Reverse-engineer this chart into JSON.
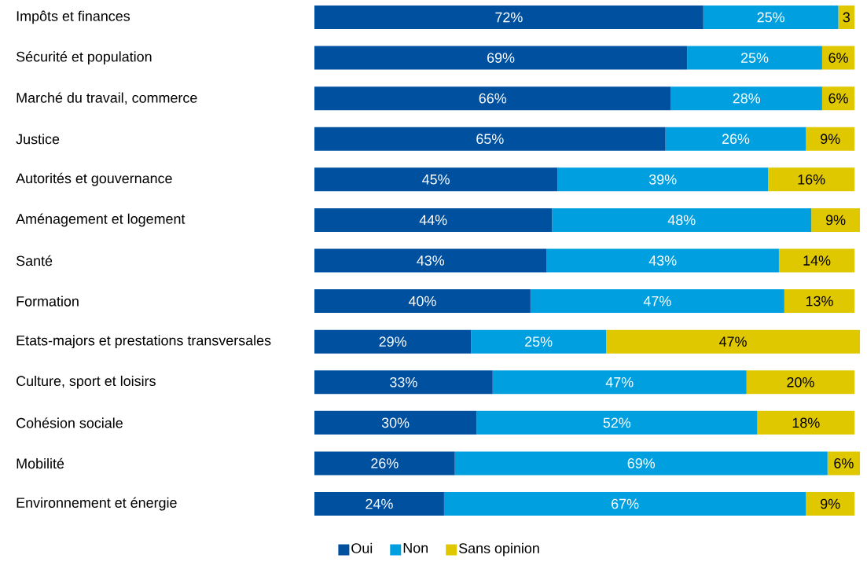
{
  "chart_data": {
    "type": "bar",
    "orientation": "horizontal",
    "stacked": true,
    "legend": "bottom",
    "categories": [
      "Impôts et finances",
      "Sécurité et population",
      "Marché du travail, commerce",
      "Justice",
      "Autorités et gouvernance",
      "Aménagement et logement",
      "Santé",
      "Formation",
      "Etats-majors et prestations transversales",
      "Culture, sport et loisirs",
      "Cohésion sociale",
      "Mobilité",
      "Environnement et énergie"
    ],
    "xlim": [
      0,
      101
    ],
    "series": [
      {
        "name": "Oui",
        "color": "#0050a0",
        "values": [
          72,
          69,
          66,
          65,
          45,
          44,
          43,
          40,
          29,
          33,
          30,
          26,
          24
        ],
        "value_labels": [
          "72%",
          "69%",
          "66%",
          "65%",
          "45%",
          "44%",
          "43%",
          "40%",
          "29%",
          "33%",
          "30%",
          "26%",
          "24%"
        ]
      },
      {
        "name": "Non",
        "color": "#00a0e0",
        "values": [
          25,
          25,
          28,
          26,
          39,
          48,
          43,
          47,
          25,
          47,
          52,
          69,
          67
        ],
        "value_labels": [
          "25%",
          "25%",
          "28%",
          "26%",
          "39%",
          "48%",
          "43%",
          "47%",
          "25%",
          "47%",
          "52%",
          "69%",
          "67%"
        ]
      },
      {
        "name": "Sans opinion",
        "color": "#e0c800",
        "values": [
          3,
          6,
          6,
          9,
          16,
          9,
          14,
          13,
          47,
          20,
          18,
          6,
          9
        ],
        "value_labels": [
          "3",
          "6%",
          "6%",
          "9%",
          "16%",
          "9%",
          "14%",
          "13%",
          "47%",
          "20%",
          "18%",
          "6%",
          "9%"
        ]
      }
    ]
  }
}
